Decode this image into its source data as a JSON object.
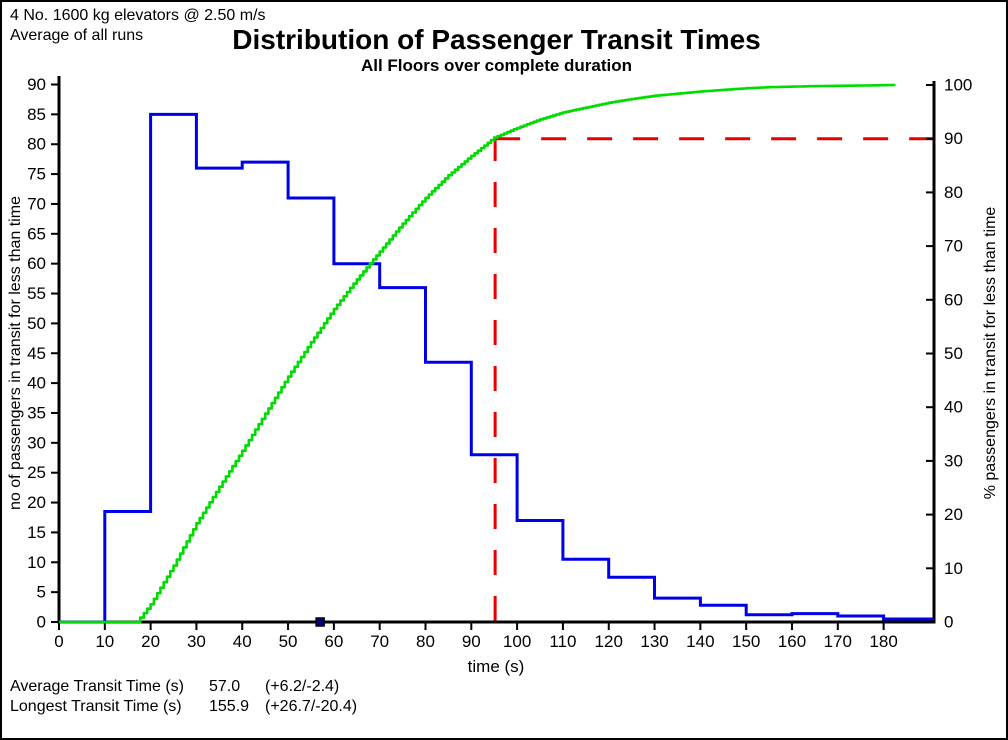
{
  "annotations": {
    "line1": "4 No. 1600 kg elevators @ 2.50 m/s",
    "line2": "Average of all runs"
  },
  "title": "Distribution of Passenger Transit Times",
  "subtitle": "All Floors over complete duration",
  "stats": {
    "average": {
      "label": "Average Transit Time (s)",
      "value": "57.0",
      "tolerance": "(+6.2/-2.4)"
    },
    "longest": {
      "label": "Longest Transit Time (s)",
      "value": "155.9",
      "tolerance": "(+26.7/-20.4)"
    }
  },
  "chart_data": {
    "type": "bar",
    "subtype": "step-histogram-with-cumulative-percent-line",
    "title": "Distribution of Passenger Transit Times",
    "subtitle": "All Floors over complete duration",
    "x_axis": {
      "label": "time (s)",
      "min": 0,
      "max": 191,
      "tick_step": 10,
      "last_labeled_tick": 180
    },
    "y_left_axis": {
      "label": "no of passengers in transit for less than time",
      "min": 0,
      "max": 90,
      "tick_step": 5
    },
    "y_right_axis": {
      "label": "% passengers in transit for less than time",
      "min": 0,
      "max": 100,
      "tick_step": 10
    },
    "grid": "off",
    "legend": "none",
    "histogram_series": {
      "name": "no of passengers in transit",
      "color": "#0000E8",
      "bin_width_s": 10,
      "bins_start_s": 0,
      "values": [
        0,
        18.5,
        85,
        76,
        77,
        71,
        60,
        56,
        43.5,
        28,
        17,
        10.5,
        7.5,
        4,
        2.8,
        1.2,
        1.4,
        1.0,
        0.5
      ]
    },
    "cumulative_series": {
      "name": "% passengers in transit for less than time",
      "color": "#00DC00",
      "points": [
        [
          0,
          0
        ],
        [
          17,
          0
        ],
        [
          20,
          3.3
        ],
        [
          25,
          10.5
        ],
        [
          30,
          18.4
        ],
        [
          35,
          25.2
        ],
        [
          40,
          31.9
        ],
        [
          45,
          38.8
        ],
        [
          50,
          45.7
        ],
        [
          55,
          52.1
        ],
        [
          60,
          58.3
        ],
        [
          65,
          63.8
        ],
        [
          70,
          69.0
        ],
        [
          75,
          74.2
        ],
        [
          80,
          79.0
        ],
        [
          85,
          83.2
        ],
        [
          90,
          86.8
        ],
        [
          95,
          90.2
        ],
        [
          100,
          92.0
        ],
        [
          105,
          93.6
        ],
        [
          110,
          94.9
        ],
        [
          115,
          95.8
        ],
        [
          120,
          96.7
        ],
        [
          125,
          97.4
        ],
        [
          130,
          98.0
        ],
        [
          135,
          98.4
        ],
        [
          140,
          98.8
        ],
        [
          145,
          99.1
        ],
        [
          150,
          99.4
        ],
        [
          155,
          99.6
        ],
        [
          160,
          99.7
        ],
        [
          165,
          99.8
        ],
        [
          170,
          99.85
        ],
        [
          175,
          99.9
        ],
        [
          182.6,
          100
        ]
      ]
    },
    "reference_marker": {
      "time_s": 95.2,
      "percent": 90,
      "color": "#E80000",
      "style": "dashed"
    },
    "average_time_marker": {
      "time_s": 57,
      "color": "#000080"
    }
  }
}
